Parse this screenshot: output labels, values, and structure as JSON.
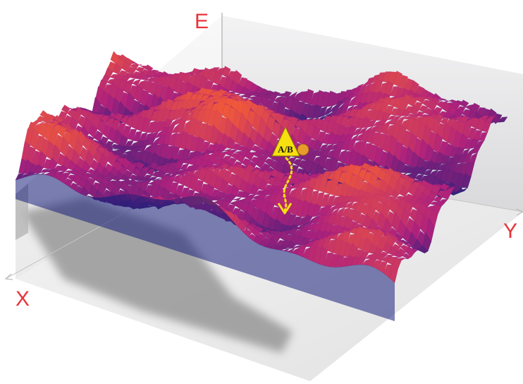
{
  "axes": {
    "x_label": "X",
    "y_label": "Y",
    "e_label": "E",
    "label_color": "#e8343a"
  },
  "marker": {
    "label": "A/B",
    "triangle_color": "#f6e010",
    "circle_color": "#e89a2a",
    "path_color": "#f6e010"
  },
  "surface": {
    "colors": {
      "valley": "#1a1f7a",
      "mid": "#b0217c",
      "peak": "#f0583a"
    },
    "shadow_color": "#9a9a9a",
    "wall_color": "#e4e4e6",
    "floor_color": "#eeeeee"
  }
}
